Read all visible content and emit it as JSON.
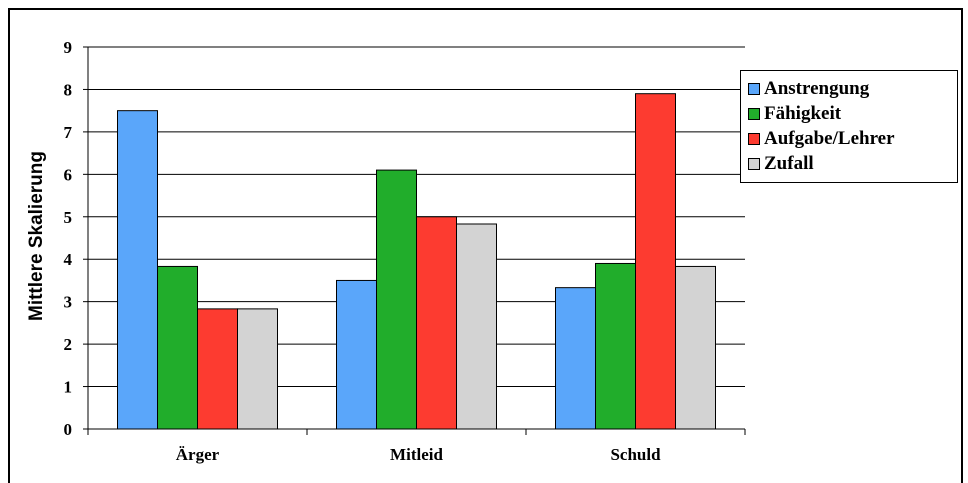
{
  "chart_data": {
    "type": "bar",
    "categories": [
      "Ärger",
      "Mitleid",
      "Schuld"
    ],
    "series": [
      {
        "name": "Anstrengung",
        "color": "#5aa6fa",
        "values": [
          7.5,
          3.5,
          3.33
        ]
      },
      {
        "name": "Fähigkeit",
        "color": "#21ad2b",
        "values": [
          3.83,
          6.1,
          3.9
        ]
      },
      {
        "name": "Aufgabe/Lehrer",
        "color": "#fd3b30",
        "values": [
          2.83,
          5.0,
          7.9
        ]
      },
      {
        "name": "Zufall",
        "color": "#d3d3d3",
        "values": [
          2.83,
          4.83,
          3.83
        ]
      }
    ],
    "title": "",
    "xlabel": "",
    "ylabel": "Mittlere Skalierung",
    "ylim": [
      0,
      9
    ],
    "yticks": [
      "0",
      "1",
      "2",
      "3",
      "4",
      "5",
      "6",
      "7",
      "8",
      "9"
    ],
    "grid": true,
    "legend_position": "right"
  }
}
